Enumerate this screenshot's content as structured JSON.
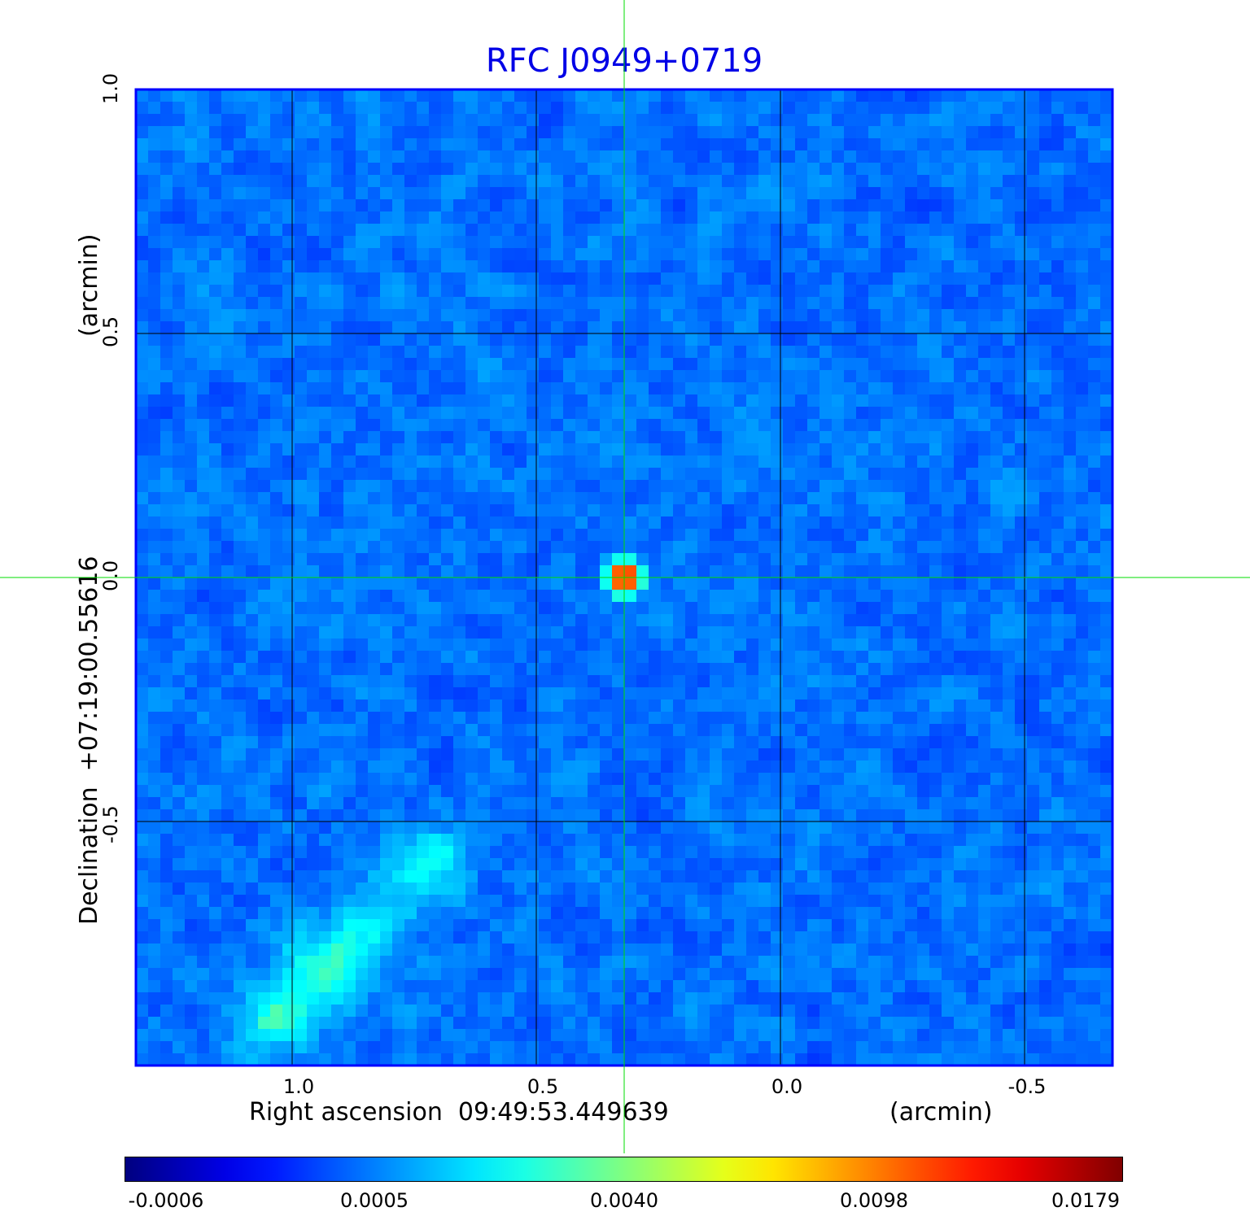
{
  "chart_data": {
    "type": "heatmap",
    "title": "RFC J0949+0719",
    "xlabel": "Right ascension  09:49:53.449639",
    "xunit": "(arcmin)",
    "ylabel": "Declination  +07:19:00.55616",
    "yunit": "(arcmin)",
    "x_ticks": [
      "1.0",
      "0.5",
      "0.0",
      "-0.5"
    ],
    "x_tick_values": [
      1.0,
      0.5,
      0.0,
      -0.5
    ],
    "y_ticks": [
      "1.0",
      "0.5",
      "0.0",
      "-0.5"
    ],
    "y_tick_values": [
      1.0,
      0.5,
      0.0,
      -0.5
    ],
    "xlim": [
      1.32,
      -0.68
    ],
    "ylim": [
      -1.0,
      1.0
    ],
    "grid": true,
    "colormap": "jet",
    "colorbar": {
      "ticks": [
        "-0.0006",
        "0.0005",
        "0.0040",
        "0.0098",
        "0.0179"
      ],
      "placement": "bottom"
    },
    "crosshair": {
      "x": 0.32,
      "y": 0.0,
      "color": "#00dd00"
    },
    "features": [
      {
        "name": "compact source",
        "x": 0.32,
        "y": 0.0,
        "peak": 0.0179
      },
      {
        "name": "extended emission",
        "x_range": [
          0.7,
          1.05
        ],
        "y_range": [
          -0.97,
          -0.55
        ],
        "level": 0.002
      }
    ],
    "colors": {
      "title": "#0000e6",
      "frame": "#0000ff",
      "grid": "#000000",
      "crosshair": "#00dd00"
    }
  }
}
